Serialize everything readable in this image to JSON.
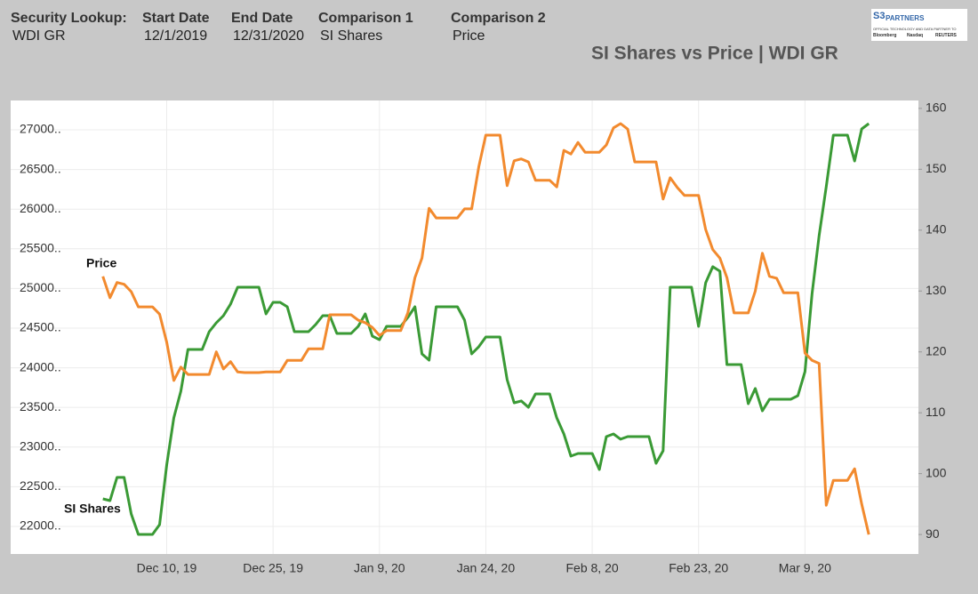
{
  "header": {
    "fields": [
      {
        "label": "Security Lookup:",
        "value": "WDI GR"
      },
      {
        "label": "Start Date",
        "value": "12/1/2019"
      },
      {
        "label": "End Date",
        "value": "12/31/2020"
      },
      {
        "label": "Comparison 1",
        "value": "SI Shares"
      },
      {
        "label": "Comparison 2",
        "value": "Price"
      }
    ]
  },
  "logo": {
    "mark": "S3",
    "name": "PARTNERS",
    "tagline": "OFFICIAL TECHNOLOGY AND DATA PARTNER TO",
    "partners": [
      "Bloomberg",
      "Nasdaq",
      "REUTERS"
    ]
  },
  "chart_data": {
    "type": "line",
    "title": "SI Shares vs Price | WDI GR",
    "x": [
      "2019-12-01",
      "2019-12-02",
      "2019-12-03",
      "2019-12-04",
      "2019-12-05",
      "2019-12-06",
      "2019-12-07",
      "2019-12-08",
      "2019-12-09",
      "2019-12-10",
      "2019-12-11",
      "2019-12-12",
      "2019-12-13",
      "2019-12-14",
      "2019-12-15",
      "2019-12-16",
      "2019-12-17",
      "2019-12-18",
      "2019-12-19",
      "2019-12-20",
      "2019-12-21",
      "2019-12-22",
      "2019-12-23",
      "2019-12-24",
      "2019-12-25",
      "2019-12-26",
      "2019-12-27",
      "2019-12-28",
      "2019-12-29",
      "2019-12-30",
      "2019-12-31",
      "2020-01-01",
      "2020-01-02",
      "2020-01-03",
      "2020-01-04",
      "2020-01-05",
      "2020-01-06",
      "2020-01-07",
      "2020-01-08",
      "2020-01-09",
      "2020-01-10",
      "2020-01-11",
      "2020-01-12",
      "2020-01-13",
      "2020-01-14",
      "2020-01-15",
      "2020-01-16",
      "2020-01-17",
      "2020-01-18",
      "2020-01-19",
      "2020-01-20",
      "2020-01-21",
      "2020-01-22",
      "2020-01-23",
      "2020-01-24",
      "2020-01-25",
      "2020-01-26",
      "2020-01-27",
      "2020-01-28",
      "2020-01-29",
      "2020-01-30",
      "2020-01-31",
      "2020-02-01",
      "2020-02-02",
      "2020-02-03",
      "2020-02-04",
      "2020-02-05",
      "2020-02-06",
      "2020-02-07",
      "2020-02-08",
      "2020-02-09",
      "2020-02-10",
      "2020-02-11",
      "2020-02-12",
      "2020-02-13",
      "2020-02-14",
      "2020-02-15",
      "2020-02-16",
      "2020-02-17",
      "2020-02-18",
      "2020-02-19",
      "2020-02-20",
      "2020-02-21",
      "2020-02-22",
      "2020-02-23",
      "2020-02-24",
      "2020-02-25",
      "2020-02-26",
      "2020-02-27",
      "2020-02-28",
      "2020-02-29",
      "2020-03-01",
      "2020-03-02",
      "2020-03-03",
      "2020-03-04",
      "2020-03-05",
      "2020-03-06",
      "2020-03-07",
      "2020-03-08",
      "2020-03-09",
      "2020-03-10",
      "2020-03-11",
      "2020-03-12",
      "2020-03-13",
      "2020-03-14",
      "2020-03-15",
      "2020-03-16",
      "2020-03-17",
      "2020-03-18"
    ],
    "series": [
      {
        "name": "SI Shares",
        "color": "#3a9a35",
        "values": [
          22347,
          22325,
          22617,
          22617,
          22157,
          21899,
          21899,
          21899,
          22022,
          22774,
          23368,
          23704,
          24231,
          24231,
          24231,
          24455,
          24567,
          24657,
          24803,
          25016,
          25016,
          25016,
          25016,
          24679,
          24825,
          24825,
          24769,
          24455,
          24455,
          24455,
          24545,
          24657,
          24657,
          24433,
          24433,
          24433,
          24522,
          24679,
          24399,
          24354,
          24522,
          24522,
          24522,
          24634,
          24769,
          24175,
          24096,
          24769,
          24769,
          24769,
          24769,
          24601,
          24175,
          24265,
          24388,
          24388,
          24388,
          23850,
          23558,
          23581,
          23502,
          23670,
          23670,
          23670,
          23368,
          23166,
          22886,
          22919,
          22919,
          22919,
          22717,
          23132,
          23166,
          23099,
          23132,
          23132,
          23132,
          23132,
          22796,
          22953,
          25016,
          25016,
          25016,
          25016,
          24522,
          25072,
          25274,
          25217,
          24040,
          24040,
          24040,
          23547,
          23738,
          23457,
          23603,
          23603,
          23603,
          23603,
          23648,
          23951,
          24937,
          25666,
          26283,
          26933,
          26933,
          26933,
          26608,
          27011,
          27078
        ]
      },
      {
        "name": "Price",
        "color": "#f28a2e",
        "axis": "y2",
        "values": [
          132.4,
          128.9,
          131.4,
          131.1,
          129.9,
          127.4,
          127.4,
          127.4,
          126.2,
          121.6,
          115.3,
          117.5,
          116.3,
          116.3,
          116.3,
          116.3,
          120.0,
          117.2,
          118.4,
          116.7,
          116.6,
          116.6,
          116.6,
          116.7,
          116.7,
          116.7,
          118.6,
          118.6,
          118.6,
          120.5,
          120.5,
          120.5,
          126.1,
          126.1,
          126.1,
          126.1,
          125.2,
          124.8,
          124.0,
          122.7,
          123.5,
          123.5,
          123.5,
          126.4,
          132.2,
          135.4,
          143.6,
          142.0,
          142.0,
          142.0,
          142.0,
          143.5,
          143.5,
          150.4,
          155.6,
          155.6,
          155.6,
          147.3,
          151.4,
          151.7,
          151.2,
          148.2,
          148.2,
          148.2,
          147.1,
          153.1,
          152.5,
          154.4,
          152.8,
          152.8,
          152.8,
          154.0,
          156.8,
          157.5,
          156.6,
          151.2,
          151.2,
          151.2,
          151.2,
          145.1,
          148.6,
          147.0,
          145.7,
          145.7,
          145.7,
          140.1,
          136.8,
          135.4,
          132.2,
          126.4,
          126.4,
          126.4,
          130.0,
          136.2,
          132.4,
          132.1,
          129.7,
          129.7,
          129.7,
          119.8,
          118.6,
          118.1,
          94.8,
          98.9,
          98.9,
          98.9,
          100.8,
          95.0,
          90.0
        ]
      }
    ],
    "xlim": [
      "2019-11-18",
      "2020-03-25"
    ],
    "xticks": [
      {
        "value": "2019-12-10",
        "label": "Dec 10, 19"
      },
      {
        "value": "2019-12-25",
        "label": "Dec 25, 19"
      },
      {
        "value": "2020-01-09",
        "label": "Jan 9, 20"
      },
      {
        "value": "2020-01-24",
        "label": "Jan 24, 20"
      },
      {
        "value": "2020-02-08",
        "label": "Feb 8, 20"
      },
      {
        "value": "2020-02-23",
        "label": "Feb 23, 20"
      },
      {
        "value": "2020-03-09",
        "label": "Mar 9, 20"
      }
    ],
    "ylim": [
      21652,
      27370
    ],
    "yticks": [
      {
        "value": 22000,
        "label": "22000.."
      },
      {
        "value": 22500,
        "label": "22500.."
      },
      {
        "value": 23000,
        "label": "23000.."
      },
      {
        "value": 23500,
        "label": "23500.."
      },
      {
        "value": 24000,
        "label": "24000.."
      },
      {
        "value": 24500,
        "label": "24500.."
      },
      {
        "value": 25000,
        "label": "25000.."
      },
      {
        "value": 25500,
        "label": "25500.."
      },
      {
        "value": 26000,
        "label": "26000.."
      },
      {
        "value": 26500,
        "label": "26500.."
      },
      {
        "value": 27000,
        "label": "27000.."
      }
    ],
    "y2lim": [
      86.8,
      161.3
    ],
    "y2ticks": [
      90,
      100,
      110,
      120,
      130,
      140,
      150,
      160
    ],
    "grid": true
  }
}
